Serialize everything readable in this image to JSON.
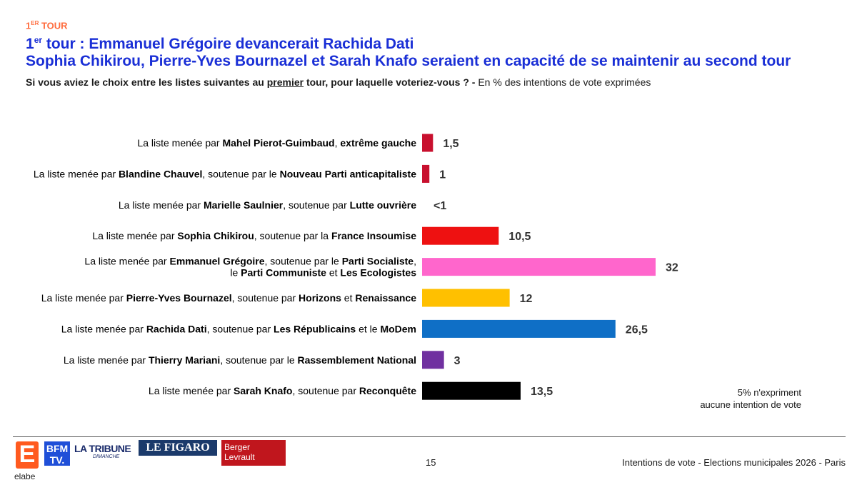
{
  "header": {
    "kicker_num": "1",
    "kicker_sup": "ER",
    "kicker_rest": " TOUR",
    "title_num": "1",
    "title_sup": "er",
    "title_line1_rest": " tour : Emmanuel Grégoire devancerait Rachida Dati",
    "title_line2": "Sophia Chikirou, Pierre-Yves Bournazel et Sarah Knafo seraient en capacité de se maintenir au second tour"
  },
  "question": {
    "part1": "Si vous aviez le choix entre les listes suivantes au ",
    "underlined": "premier",
    "part2": " tour, pour laquelle voteriez-vous ? -",
    "note": " En % des intentions de vote exprimées"
  },
  "chart_data": {
    "type": "bar",
    "orientation": "horizontal",
    "title": "Si vous aviez le choix entre les listes suivantes au premier tour, pour laquelle voteriez-vous ?",
    "unit": "% des intentions de vote exprimées",
    "xlim": [
      0,
      34
    ],
    "categories": [
      "La liste menée par Mahel Pierot-Guimbaud, extrême gauche",
      "La liste menée par Blandine Chauvel, soutenue par le Nouveau Parti anticapitaliste",
      "La liste menée par Marielle Saulnier, soutenue par Lutte ouvrière",
      "La liste menée par Sophia Chikirou, soutenue par la France Insoumise",
      "La liste menée par Emmanuel Grégoire, soutenue par le Parti Socialiste, le Parti Communiste et Les Ecologistes",
      "La liste menée par Pierre-Yves Bournazel, soutenue par Horizons et Renaissance",
      "La liste menée par Rachida Dati, soutenue par Les Républicains et le MoDem",
      "La liste menée par Thierry Mariani, soutenue par le Rassemblement National",
      "La liste menée par Sarah Knafo, soutenue par Reconquête"
    ],
    "values": [
      1.5,
      1,
      0,
      10.5,
      32,
      12,
      26.5,
      3,
      13.5
    ],
    "value_labels": [
      "1,5",
      "1",
      "<1",
      "10,5",
      "32",
      "12",
      "26,5",
      "3",
      "13,5"
    ],
    "colors": [
      "#c8102e",
      "#c8102e",
      "#c8102e",
      "#ee1111",
      "#ff66cc",
      "#ffc000",
      "#0f6fc6",
      "#7030a0",
      "#000000"
    ],
    "label_lines": [
      [
        [
          [
            "La liste menée par ",
            false
          ],
          [
            "Mahel Pierot-Guimbaud",
            true
          ],
          [
            ", ",
            false
          ],
          [
            "extrême gauche",
            true
          ]
        ]
      ],
      [
        [
          [
            "La liste menée par ",
            false
          ],
          [
            "Blandine Chauvel",
            true
          ],
          [
            ", soutenue par le ",
            false
          ],
          [
            "Nouveau Parti anticapitaliste",
            true
          ]
        ]
      ],
      [
        [
          [
            "La liste menée par ",
            false
          ],
          [
            "Marielle Saulnier",
            true
          ],
          [
            ", soutenue par ",
            false
          ],
          [
            "Lutte ouvrière",
            true
          ]
        ]
      ],
      [
        [
          [
            "La liste menée par ",
            false
          ],
          [
            "Sophia Chikirou",
            true
          ],
          [
            ", soutenue par la ",
            false
          ],
          [
            "France Insoumise",
            true
          ]
        ]
      ],
      [
        [
          [
            "La liste menée par ",
            false
          ],
          [
            "Emmanuel Grégoire",
            true
          ],
          [
            ", soutenue par le ",
            false
          ],
          [
            "Parti Socialiste",
            true
          ],
          [
            ",",
            false
          ]
        ],
        [
          [
            "le ",
            false
          ],
          [
            "Parti Communiste",
            true
          ],
          [
            " et ",
            false
          ],
          [
            "Les Ecologistes",
            true
          ]
        ]
      ],
      [
        [
          [
            "La liste menée par ",
            false
          ],
          [
            "Pierre-Yves Bournazel",
            true
          ],
          [
            ", soutenue par ",
            false
          ],
          [
            "Horizons",
            true
          ],
          [
            " et ",
            false
          ],
          [
            "Renaissance",
            true
          ]
        ]
      ],
      [
        [
          [
            "La liste menée par ",
            false
          ],
          [
            "Rachida Dati",
            true
          ],
          [
            ", soutenue par ",
            false
          ],
          [
            "Les Républicains",
            true
          ],
          [
            " et le ",
            false
          ],
          [
            "MoDem",
            true
          ]
        ]
      ],
      [
        [
          [
            "La liste menée par ",
            false
          ],
          [
            "Thierry Mariani",
            true
          ],
          [
            ", soutenue par le ",
            false
          ],
          [
            "Rassemblement National",
            true
          ]
        ]
      ],
      [
        [
          [
            "La liste menée par ",
            false
          ],
          [
            "Sarah Knafo",
            true
          ],
          [
            ", soutenue par ",
            false
          ],
          [
            "Reconquête",
            true
          ]
        ]
      ]
    ]
  },
  "note": {
    "line1": "5% n'expriment",
    "line2": "aucune intention de vote"
  },
  "footer": {
    "page_number": "15",
    "source": "Intentions de vote - Elections municipales 2026 - Paris"
  },
  "logos": {
    "elabe_letter": "E",
    "elabe_text": "elabe",
    "bfm_line1": "BFM",
    "bfm_line2": "TV.",
    "tribune": "LA TRIBUNE",
    "tribune_sub": "DIMANCHE",
    "figaro": "LE FIGARO",
    "berger_line1": "Berger",
    "berger_line2": "Levrault"
  }
}
